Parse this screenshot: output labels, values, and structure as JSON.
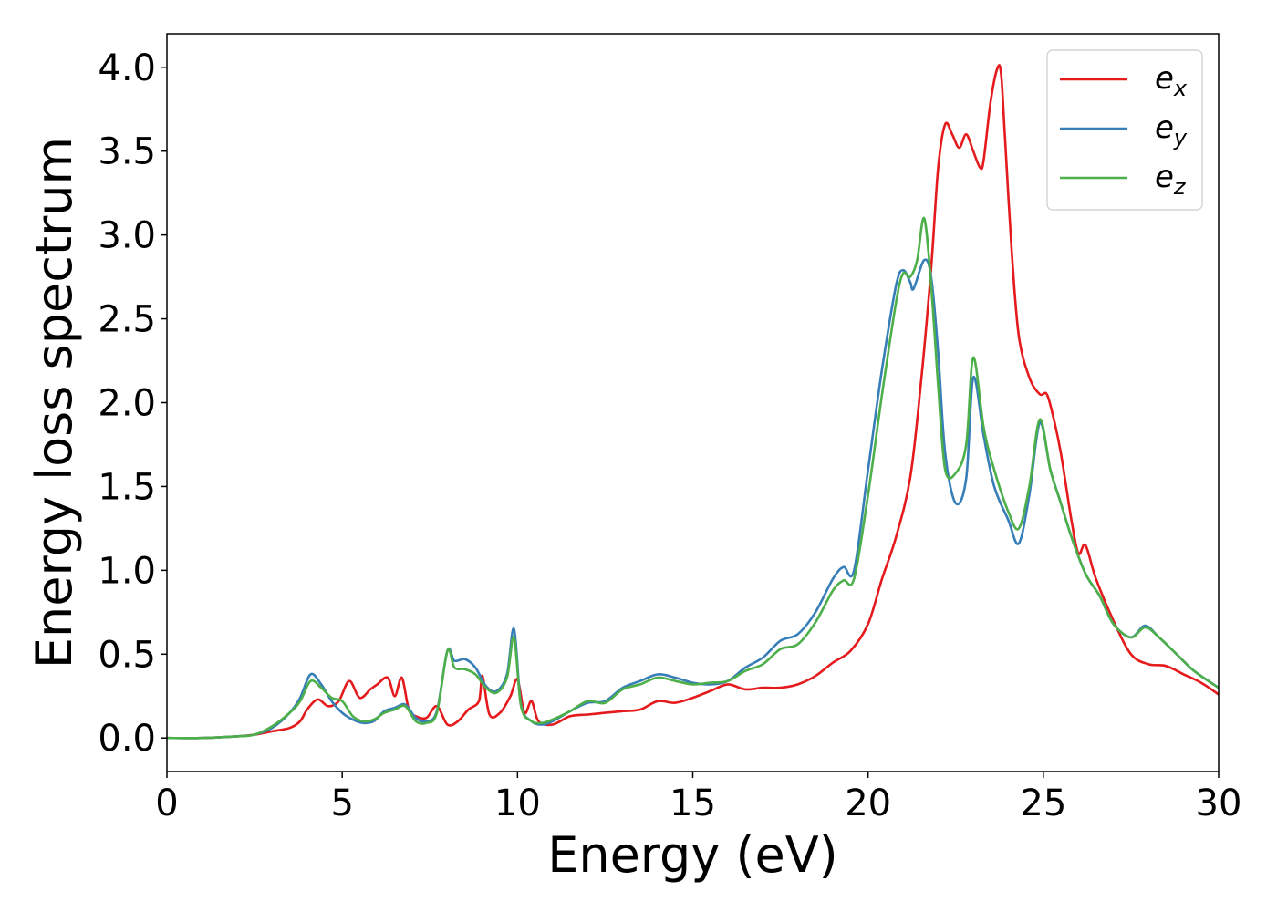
{
  "chart_data": {
    "type": "line",
    "xlabel": "Energy (eV)",
    "ylabel": "Energy loss spectrum",
    "xlim": [
      0,
      30
    ],
    "ylim": [
      -0.2,
      4.2
    ],
    "xticks": [
      0,
      5,
      10,
      15,
      20,
      25,
      30
    ],
    "xtick_labels": [
      "0",
      "5",
      "10",
      "15",
      "20",
      "25",
      "30"
    ],
    "yticks": [
      0.0,
      0.5,
      1.0,
      1.5,
      2.0,
      2.5,
      3.0,
      3.5,
      4.0
    ],
    "ytick_labels": [
      "0.0",
      "0.5",
      "1.0",
      "1.5",
      "2.0",
      "2.5",
      "3.0",
      "3.5",
      "4.0"
    ],
    "grid": false,
    "legend_position": "top-right",
    "series": [
      {
        "name": "e",
        "subscript": "x",
        "color": "#e41a1c",
        "x": [
          0,
          1,
          2,
          2.5,
          3,
          3.5,
          3.8,
          4.0,
          4.3,
          4.6,
          4.9,
          5.2,
          5.5,
          5.8,
          6.0,
          6.3,
          6.5,
          6.7,
          6.9,
          7.1,
          7.4,
          7.7,
          8.0,
          8.3,
          8.6,
          8.9,
          9.0,
          9.2,
          9.5,
          9.8,
          10.0,
          10.2,
          10.4,
          10.6,
          11.0,
          11.5,
          12.0,
          12.5,
          13.0,
          13.5,
          14.0,
          14.5,
          15.0,
          15.5,
          16.0,
          16.5,
          17.0,
          17.5,
          18.0,
          18.5,
          19.0,
          19.5,
          20.0,
          20.4,
          20.8,
          21.2,
          21.5,
          21.8,
          22.0,
          22.2,
          22.4,
          22.6,
          22.8,
          23.0,
          23.2,
          23.3,
          23.5,
          23.7,
          23.8,
          23.9,
          24.1,
          24.3,
          24.6,
          24.9,
          25.1,
          25.3,
          25.5,
          25.8,
          26.0,
          26.2,
          26.5,
          27.0,
          27.5,
          28.0,
          28.5,
          29.0,
          29.5,
          30.0
        ],
        "y": [
          0.0,
          0.0,
          0.01,
          0.02,
          0.04,
          0.06,
          0.1,
          0.17,
          0.23,
          0.19,
          0.22,
          0.34,
          0.24,
          0.29,
          0.32,
          0.36,
          0.25,
          0.36,
          0.17,
          0.13,
          0.12,
          0.19,
          0.08,
          0.1,
          0.17,
          0.22,
          0.37,
          0.14,
          0.15,
          0.25,
          0.35,
          0.15,
          0.22,
          0.1,
          0.08,
          0.13,
          0.14,
          0.15,
          0.16,
          0.17,
          0.22,
          0.21,
          0.24,
          0.28,
          0.32,
          0.29,
          0.3,
          0.3,
          0.32,
          0.37,
          0.45,
          0.52,
          0.68,
          0.95,
          1.2,
          1.55,
          2.1,
          2.8,
          3.4,
          3.66,
          3.6,
          3.52,
          3.6,
          3.5,
          3.4,
          3.45,
          3.8,
          4.0,
          3.95,
          3.6,
          2.9,
          2.4,
          2.15,
          2.05,
          2.05,
          1.9,
          1.7,
          1.3,
          1.1,
          1.15,
          0.95,
          0.7,
          0.5,
          0.44,
          0.43,
          0.38,
          0.33,
          0.26
        ]
      },
      {
        "name": "e",
        "subscript": "y",
        "color": "#377eb8",
        "x": [
          0,
          1,
          2,
          2.5,
          3,
          3.5,
          3.8,
          4.1,
          4.4,
          4.7,
          5.0,
          5.3,
          5.6,
          5.9,
          6.2,
          6.5,
          6.8,
          7.1,
          7.4,
          7.7,
          8.0,
          8.2,
          8.5,
          8.8,
          9.1,
          9.4,
          9.7,
          9.9,
          10.1,
          10.4,
          10.7,
          11.0,
          11.5,
          12.0,
          12.5,
          13.0,
          13.5,
          14.0,
          14.5,
          15.0,
          15.5,
          16.0,
          16.5,
          17.0,
          17.5,
          18.0,
          18.5,
          19.0,
          19.3,
          19.6,
          20.0,
          20.4,
          20.8,
          21.0,
          21.2,
          21.3,
          21.6,
          21.8,
          22.0,
          22.2,
          22.5,
          22.8,
          23.0,
          23.3,
          23.6,
          24.0,
          24.3,
          24.6,
          24.9,
          25.2,
          25.5,
          25.8,
          26.2,
          26.6,
          27.0,
          27.5,
          27.9,
          28.3,
          28.8,
          29.3,
          30.0
        ],
        "y": [
          0.0,
          0.0,
          0.01,
          0.02,
          0.06,
          0.15,
          0.24,
          0.38,
          0.32,
          0.22,
          0.15,
          0.11,
          0.09,
          0.1,
          0.16,
          0.18,
          0.2,
          0.12,
          0.1,
          0.16,
          0.52,
          0.46,
          0.47,
          0.42,
          0.31,
          0.28,
          0.38,
          0.65,
          0.2,
          0.1,
          0.08,
          0.1,
          0.16,
          0.21,
          0.22,
          0.3,
          0.34,
          0.38,
          0.36,
          0.33,
          0.32,
          0.34,
          0.42,
          0.48,
          0.58,
          0.62,
          0.75,
          0.95,
          1.02,
          1.0,
          1.6,
          2.2,
          2.7,
          2.79,
          2.72,
          2.68,
          2.85,
          2.75,
          2.3,
          1.7,
          1.4,
          1.55,
          2.15,
          1.8,
          1.5,
          1.3,
          1.16,
          1.45,
          1.88,
          1.6,
          1.4,
          1.2,
          0.98,
          0.85,
          0.68,
          0.6,
          0.67,
          0.6,
          0.5,
          0.4,
          0.3
        ]
      },
      {
        "name": "e",
        "subscript": "z",
        "color": "#4daf4a",
        "x": [
          0,
          1,
          2,
          2.5,
          3,
          3.5,
          3.8,
          4.1,
          4.4,
          4.7,
          5.0,
          5.3,
          5.6,
          5.9,
          6.2,
          6.5,
          6.8,
          7.1,
          7.4,
          7.7,
          8.0,
          8.2,
          8.5,
          8.8,
          9.1,
          9.4,
          9.7,
          9.9,
          10.1,
          10.4,
          10.7,
          11.0,
          11.5,
          12.0,
          12.5,
          13.0,
          13.5,
          14.0,
          14.5,
          15.0,
          15.5,
          16.0,
          16.5,
          17.0,
          17.5,
          18.0,
          18.5,
          19.0,
          19.3,
          19.6,
          20.0,
          20.4,
          20.8,
          21.0,
          21.2,
          21.4,
          21.6,
          21.8,
          22.0,
          22.2,
          22.5,
          22.8,
          23.0,
          23.3,
          23.6,
          24.0,
          24.3,
          24.6,
          24.9,
          25.2,
          25.5,
          25.8,
          26.2,
          26.6,
          27.0,
          27.5,
          27.9,
          28.3,
          28.8,
          29.3,
          30.0
        ],
        "y": [
          0.0,
          0.0,
          0.01,
          0.02,
          0.07,
          0.15,
          0.22,
          0.34,
          0.3,
          0.24,
          0.22,
          0.13,
          0.1,
          0.11,
          0.15,
          0.17,
          0.19,
          0.1,
          0.09,
          0.15,
          0.52,
          0.42,
          0.41,
          0.38,
          0.3,
          0.27,
          0.36,
          0.6,
          0.19,
          0.1,
          0.09,
          0.11,
          0.16,
          0.22,
          0.21,
          0.29,
          0.32,
          0.36,
          0.34,
          0.32,
          0.33,
          0.34,
          0.4,
          0.44,
          0.53,
          0.56,
          0.69,
          0.88,
          0.94,
          0.95,
          1.45,
          2.05,
          2.6,
          2.77,
          2.75,
          2.85,
          3.1,
          2.7,
          2.1,
          1.6,
          1.58,
          1.75,
          2.27,
          1.85,
          1.6,
          1.35,
          1.25,
          1.5,
          1.9,
          1.6,
          1.4,
          1.2,
          0.98,
          0.85,
          0.68,
          0.6,
          0.66,
          0.6,
          0.5,
          0.4,
          0.3
        ]
      }
    ]
  }
}
